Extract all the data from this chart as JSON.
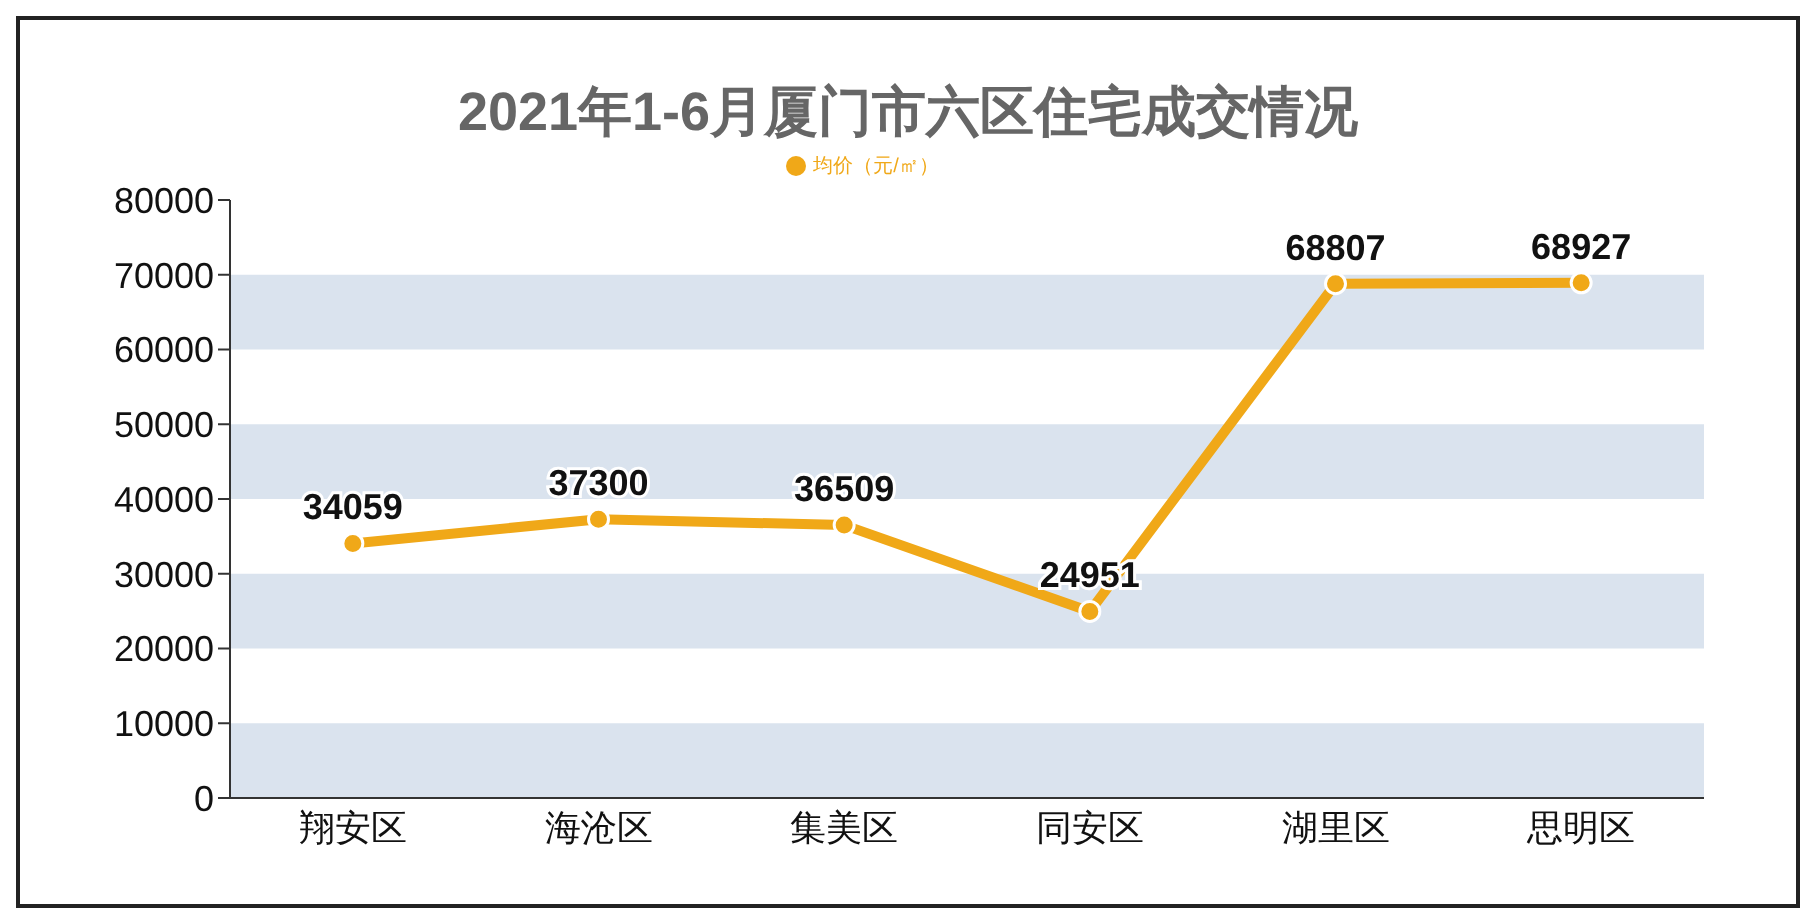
{
  "chart_data": {
    "type": "line",
    "title": "2021年1-6月厦门市六区住宅成交情况",
    "categories": [
      "翔安区",
      "海沧区",
      "集美区",
      "同安区",
      "湖里区",
      "思明区"
    ],
    "series": [
      {
        "name": "均价（元/㎡）",
        "color": "#f0a818",
        "values": [
          34059,
          37300,
          36509,
          24951,
          68807,
          68927
        ]
      }
    ],
    "ylim": [
      0,
      80000
    ],
    "yticks": [
      0,
      10000,
      20000,
      30000,
      40000,
      50000,
      60000,
      70000,
      80000
    ],
    "bands": [
      {
        "axis": "y",
        "from": 0,
        "to": 10000,
        "color": "#dae3ee"
      },
      {
        "axis": "y",
        "from": 20000,
        "to": 30000,
        "color": "#dae3ee"
      },
      {
        "axis": "y",
        "from": 40000,
        "to": 50000,
        "color": "#dae3ee"
      },
      {
        "axis": "y",
        "from": 60000,
        "to": 70000,
        "color": "#dae3ee"
      }
    ],
    "data_labels": true,
    "legend": "top",
    "marker": "circle",
    "line_style": "solid"
  }
}
